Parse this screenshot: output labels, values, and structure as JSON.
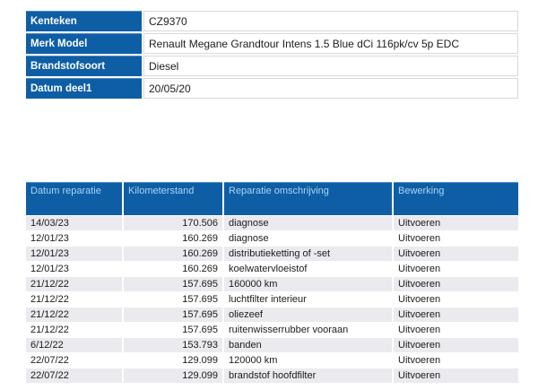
{
  "vehicle_info": {
    "rows": [
      {
        "label": "Kenteken",
        "value": "CZ9370"
      },
      {
        "label": "Merk Model",
        "value": "Renault  Megane Grandtour Intens 1.5 Blue dCi 116pk/cv 5p EDC"
      },
      {
        "label": "Brandstofsoort",
        "value": "Diesel"
      },
      {
        "label": "Datum deel1",
        "value": "20/05/20"
      }
    ]
  },
  "repairs_table": {
    "columns": [
      "Datum reparatie",
      "Kilometerstand",
      "Reparatie omschrijving",
      "Bewerking"
    ],
    "rows": [
      {
        "datum": "14/03/23",
        "kilometerstand": "170.506",
        "omschrijving": "diagnose",
        "bewerking": "Uitvoeren"
      },
      {
        "datum": "12/01/23",
        "kilometerstand": "160.269",
        "omschrijving": "diagnose",
        "bewerking": "Uitvoeren"
      },
      {
        "datum": "12/01/23",
        "kilometerstand": "160.269",
        "omschrijving": "distributieketting of -set",
        "bewerking": "Uitvoeren"
      },
      {
        "datum": "12/01/23",
        "kilometerstand": "160.269",
        "omschrijving": "koelwatervloeistof",
        "bewerking": "Uitvoeren"
      },
      {
        "datum": "21/12/22",
        "kilometerstand": "157.695",
        "omschrijving": "160000 km",
        "bewerking": "Uitvoeren"
      },
      {
        "datum": "21/12/22",
        "kilometerstand": "157.695",
        "omschrijving": "luchtfilter interieur",
        "bewerking": "Uitvoeren"
      },
      {
        "datum": "21/12/22",
        "kilometerstand": "157.695",
        "omschrijving": "oliezeef",
        "bewerking": "Uitvoeren"
      },
      {
        "datum": "21/12/22",
        "kilometerstand": "157.695",
        "omschrijving": "ruitenwisserrubber vooraan",
        "bewerking": "Uitvoeren"
      },
      {
        "datum": "6/12/22",
        "kilometerstand": "153.793",
        "omschrijving": "banden",
        "bewerking": "Uitvoeren"
      },
      {
        "datum": "22/07/22",
        "kilometerstand": "129.099",
        "omschrijving": "120000 km",
        "bewerking": "Uitvoeren"
      },
      {
        "datum": "22/07/22",
        "kilometerstand": "129.099",
        "omschrijving": "brandstof hoofdfilter",
        "bewerking": "Uitvoeren"
      }
    ]
  },
  "colors": {
    "header_blue": "#0e5ea6",
    "header_highlight": "#4e8dc4",
    "header_text": "#a9d4f2",
    "label_text": "#ffffff",
    "alt_row": "#eaeaef",
    "cell_text": "#1c1c1c",
    "value_border": "#d9d9d9"
  }
}
